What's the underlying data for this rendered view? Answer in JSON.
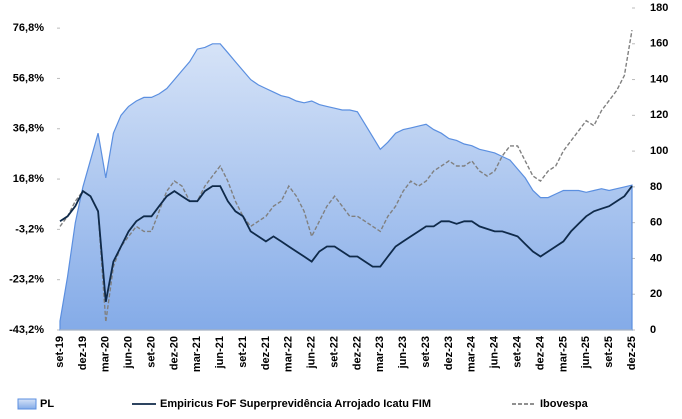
{
  "chart_data": {
    "type": "line",
    "categories": [
      "set-19",
      null,
      null,
      "dez-19",
      null,
      null,
      "mar-20",
      null,
      null,
      "jun-20",
      null,
      null,
      "set-20",
      null,
      null,
      "dez-20",
      null,
      null,
      "mar-21",
      null,
      null,
      "jun-21",
      null,
      null,
      "set-21",
      null,
      null,
      "dez-21",
      null,
      null,
      "mar-22",
      null,
      null,
      "jun-22",
      null,
      null,
      "set-22",
      null,
      null,
      "dez-22",
      null,
      null,
      "mar-23",
      null,
      null,
      "jun-23",
      null,
      null,
      "set-23",
      null,
      null,
      "dez-23",
      null,
      null,
      "mar-24",
      null,
      null,
      "jun-24",
      null,
      null,
      "set-24",
      null,
      null,
      "dez-24",
      null,
      null,
      "mar-25",
      null,
      null,
      "jun-25",
      null,
      null,
      "set-25",
      null,
      null,
      "dez-25"
    ],
    "series": [
      {
        "name": "PL",
        "color": "#5b8fe0",
        "axis": "y2",
        "kind": "area",
        "values": [
          5,
          30,
          60,
          80,
          95,
          110,
          85,
          110,
          120,
          125,
          128,
          130,
          130,
          132,
          135,
          140,
          145,
          150,
          157,
          158,
          160,
          160,
          155,
          150,
          145,
          140,
          137,
          135,
          133,
          131,
          130,
          128,
          127,
          128,
          126,
          125,
          124,
          123,
          123,
          122,
          115,
          108,
          101,
          105,
          110,
          112,
          113,
          114,
          115,
          112,
          110,
          107,
          106,
          104,
          103,
          101,
          100,
          99,
          97,
          95,
          90,
          85,
          78,
          74,
          74,
          76,
          78,
          78,
          78,
          77,
          78,
          79,
          78,
          79,
          80,
          81
        ]
      },
      {
        "name": "Empiricus FoF Superprevidência Arrojado Icatu FIM",
        "color": "#0f2a4a",
        "values": [
          0,
          2,
          6,
          12,
          10,
          4,
          -32,
          -16,
          -10,
          -4,
          0,
          2,
          2,
          6,
          10,
          12,
          10,
          8,
          8,
          12,
          14,
          14,
          8,
          4,
          2,
          -4,
          -6,
          -8,
          -6,
          -8,
          -10,
          -12,
          -14,
          -16,
          -12,
          -10,
          -10,
          -12,
          -14,
          -14,
          -16,
          -18,
          -18,
          -14,
          -10,
          -8,
          -6,
          -4,
          -2,
          -2,
          0,
          0,
          -1,
          0,
          0,
          -2,
          -3,
          -4,
          -4,
          -5,
          -6,
          -9,
          -12,
          -14,
          -12,
          -10,
          -8,
          -4,
          -1,
          2,
          4,
          5,
          6,
          8,
          10,
          14
        ]
      },
      {
        "name": "Ibovespa",
        "color": "#808080",
        "dashed": true,
        "values": [
          -2,
          2,
          8,
          12,
          10,
          4,
          -40,
          -18,
          -10,
          -6,
          -2,
          -4,
          -4,
          4,
          12,
          16,
          14,
          8,
          8,
          14,
          18,
          22,
          16,
          8,
          2,
          -2,
          0,
          2,
          6,
          8,
          14,
          10,
          4,
          -6,
          0,
          6,
          10,
          6,
          2,
          2,
          0,
          -2,
          -4,
          2,
          6,
          12,
          16,
          14,
          16,
          20,
          22,
          24,
          22,
          22,
          24,
          20,
          18,
          20,
          26,
          30,
          30,
          24,
          18,
          16,
          20,
          22,
          28,
          32,
          36,
          40,
          38,
          44,
          48,
          52,
          58,
          76
        ]
      }
    ],
    "ylim": [
      -43.2,
      84.8
    ],
    "yticks": [
      {
        "value": -43.2,
        "label": "-43,2%"
      },
      {
        "value": -23.2,
        "label": "-23,2%"
      },
      {
        "value": -3.2,
        "label": "-3,2%"
      },
      {
        "value": 16.8,
        "label": "16,8%"
      },
      {
        "value": 36.8,
        "label": "36,8%"
      },
      {
        "value": 56.8,
        "label": "56,8%"
      },
      {
        "value": 76.8,
        "label": "76,8%"
      }
    ],
    "y2lim": [
      0,
      180
    ],
    "y2ticks": [
      0,
      20,
      40,
      60,
      80,
      100,
      120,
      140,
      160,
      180
    ],
    "grid": false
  }
}
